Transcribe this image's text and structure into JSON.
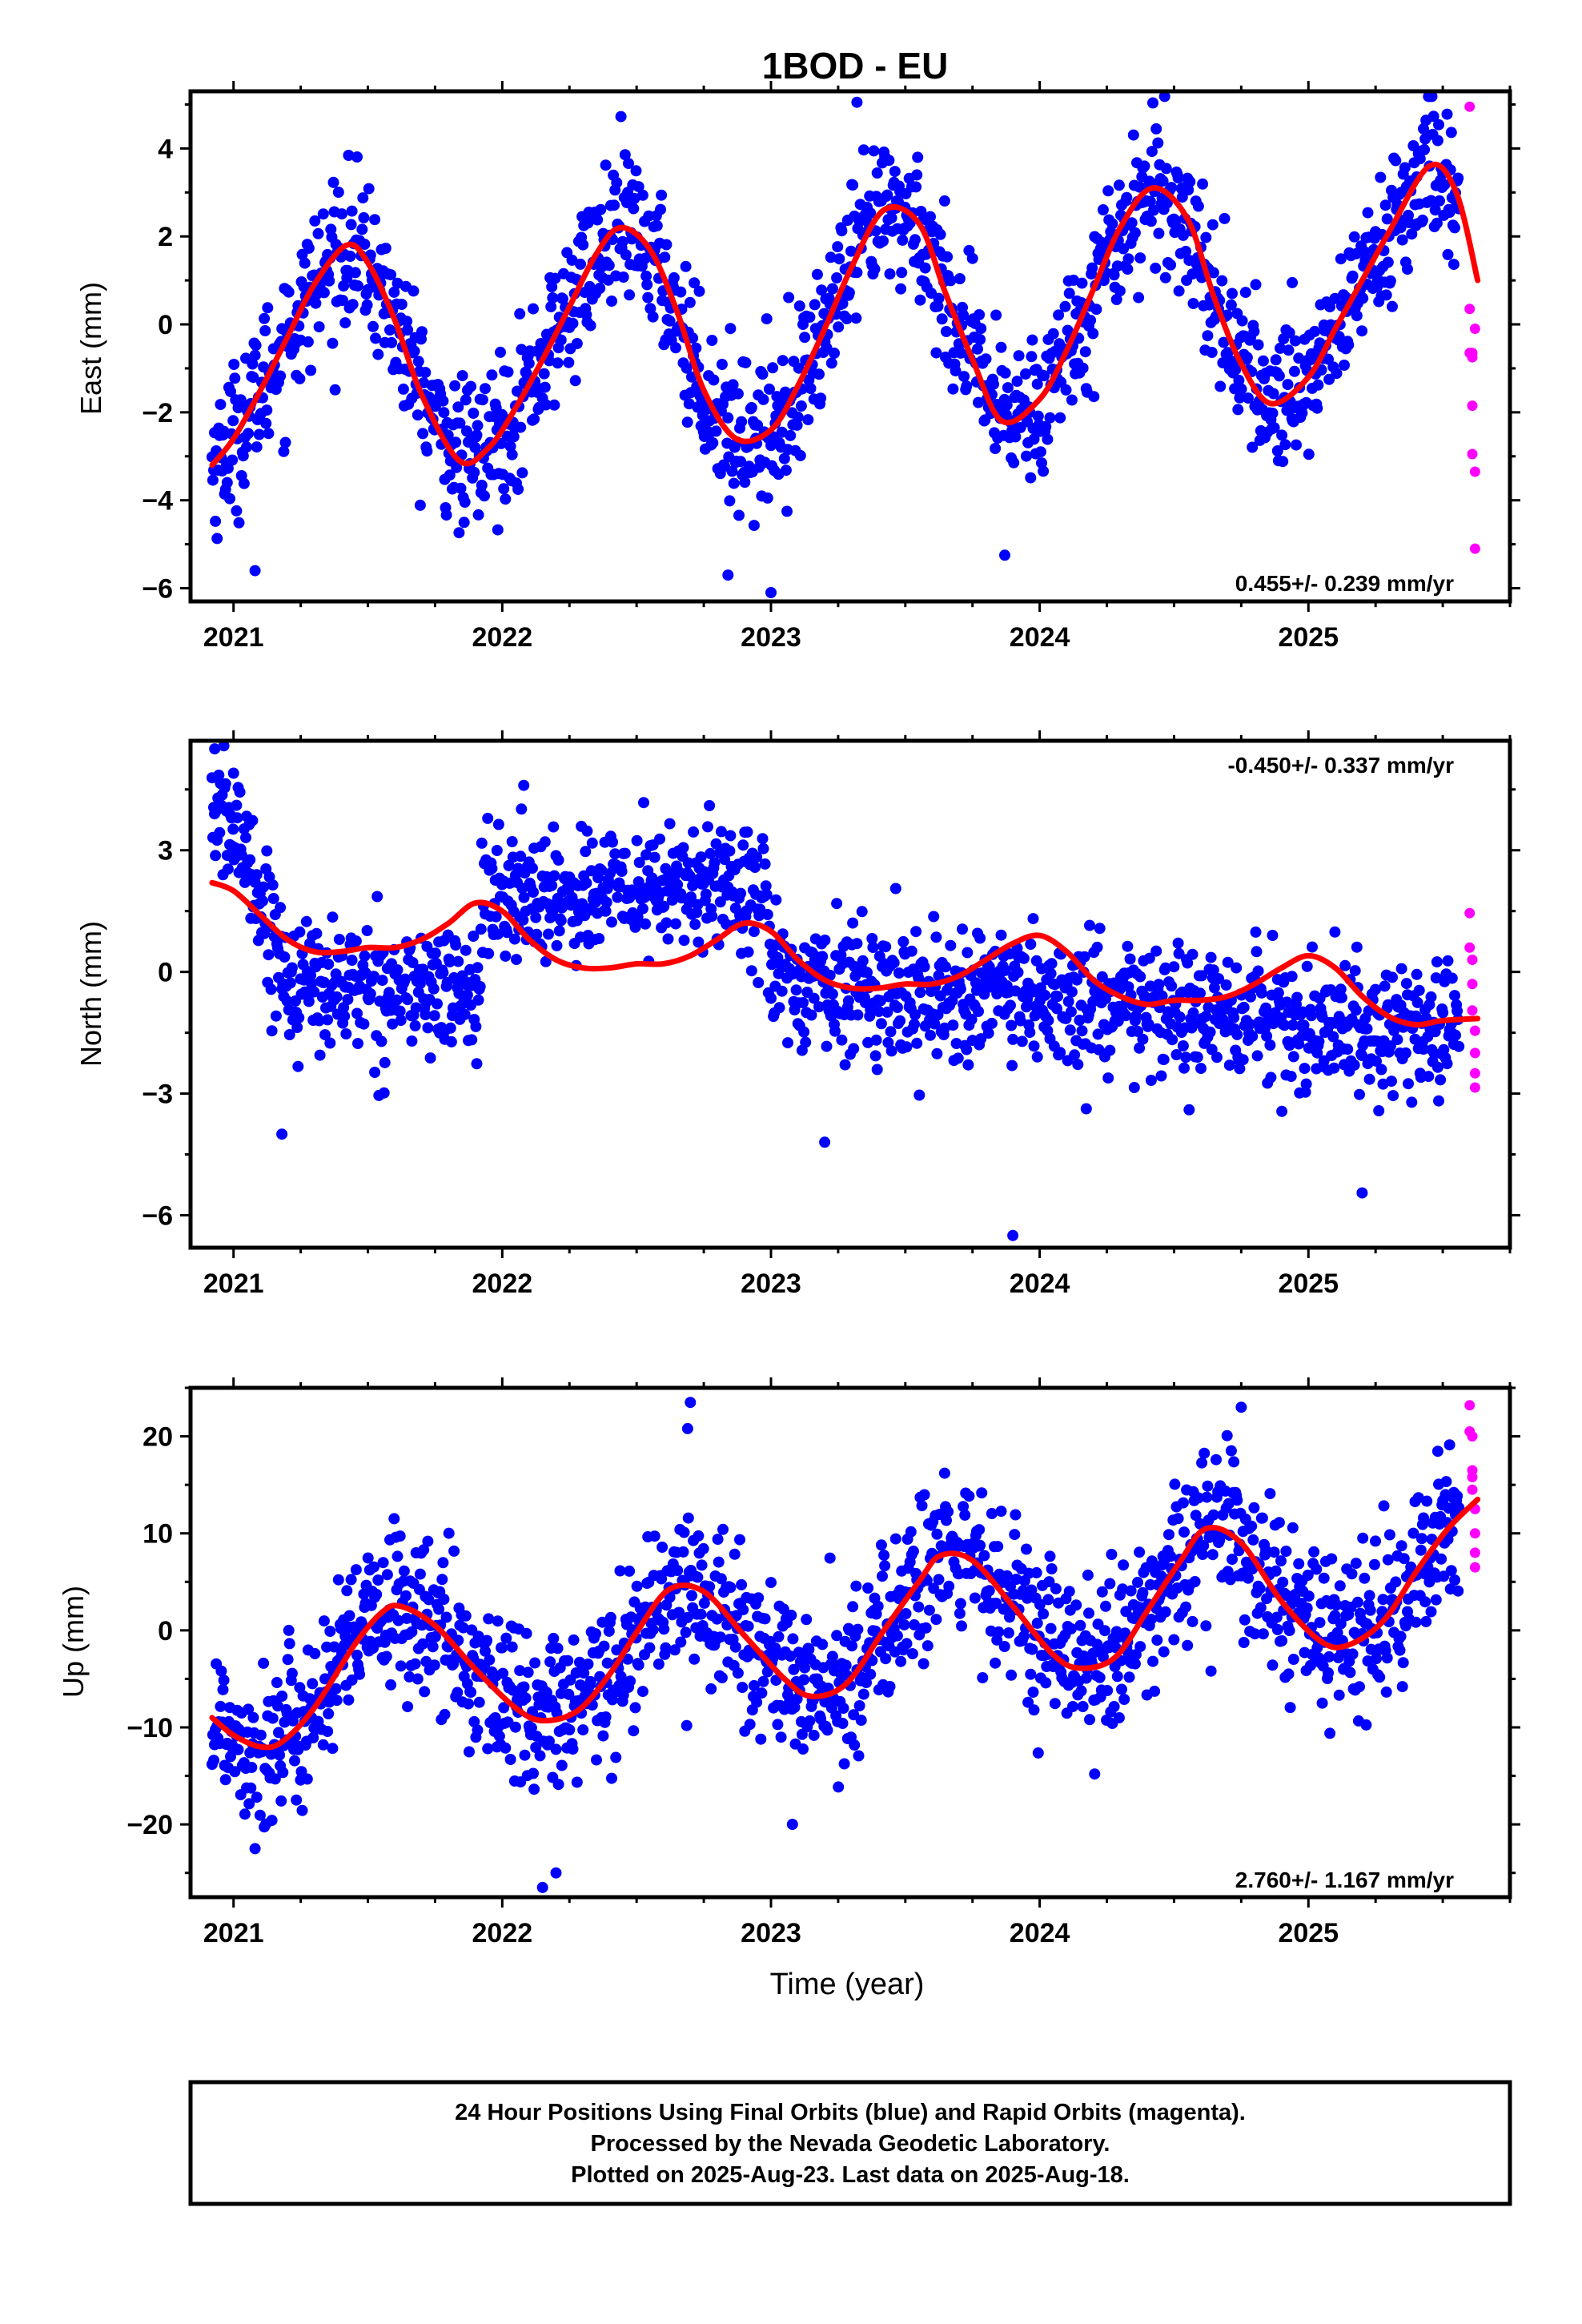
{
  "chart_data": [
    {
      "type": "scatter",
      "title": "1BOD - EU",
      "ylabel": "East (mm)",
      "rate_text": "0.455+/- 0.239 mm/yr",
      "rate_position": "bottom-right",
      "x_range": [
        2020.84,
        2025.75
      ],
      "ylim": [
        -6.3,
        5.3
      ],
      "y_ticks": [
        -6,
        -4,
        -2,
        0,
        2,
        4
      ],
      "y_tick_labels": [
        "−6",
        "−4",
        "−2",
        "0",
        "2",
        "4"
      ],
      "x_ticks": [
        2021,
        2022,
        2023,
        2024,
        2025
      ],
      "x_tick_labels": [
        "2021",
        "2022",
        "2023",
        "2024",
        "2025"
      ],
      "final_orbits": {
        "color": "#0000ff",
        "x_start": 2020.92,
        "x_end": 2025.56,
        "count": 1480,
        "noise_sd_mm": 0.85,
        "outliers": [
          [
            2023.0,
            -6.1
          ],
          [
            2021.08,
            -5.6
          ],
          [
            2023.87,
            -5.25
          ],
          [
            2022.84,
            -5.7
          ],
          [
            2023.32,
            5.05
          ],
          [
            2024.94,
            0.95
          ]
        ]
      },
      "rapid_orbits": {
        "color": "#ff00ff",
        "x": [
          2025.6,
          2025.6,
          2025.6,
          2025.61,
          2025.61,
          2025.61,
          2025.61,
          2025.62,
          2025.62,
          2025.62
        ],
        "y": [
          4.95,
          0.35,
          -0.65,
          -0.75,
          -0.65,
          -1.85,
          -2.95,
          -3.35,
          -5.1,
          -0.1
        ]
      },
      "fit": {
        "color": "#ff0000",
        "x": [
          2020.92,
          2021.0,
          2021.1,
          2021.2,
          2021.3,
          2021.42,
          2021.5,
          2021.6,
          2021.7,
          2021.84,
          2021.95,
          2022.05,
          2022.15,
          2022.25,
          2022.35,
          2022.44,
          2022.55,
          2022.65,
          2022.75,
          2022.87,
          2023.0,
          2023.1,
          2023.2,
          2023.3,
          2023.42,
          2023.55,
          2023.65,
          2023.75,
          2023.86,
          2024.0,
          2024.1,
          2024.2,
          2024.3,
          2024.42,
          2024.55,
          2024.65,
          2024.75,
          2024.86,
          2025.0,
          2025.1,
          2025.2,
          2025.3,
          2025.45,
          2025.55,
          2025.63
        ],
        "y": [
          -3.2,
          -2.6,
          -1.5,
          -0.3,
          0.9,
          1.8,
          1.4,
          0.1,
          -1.6,
          -3.1,
          -2.8,
          -1.9,
          -0.8,
          0.4,
          1.6,
          2.2,
          1.7,
          0.3,
          -1.5,
          -2.6,
          -2.4,
          -1.4,
          -0.1,
          1.3,
          2.6,
          2.3,
          0.7,
          -0.8,
          -2.2,
          -1.7,
          -0.6,
          0.8,
          2.2,
          3.1,
          2.4,
          0.6,
          -0.9,
          -1.8,
          -1.2,
          -0.1,
          1.0,
          2.1,
          3.6,
          3.0,
          1.0
        ]
      }
    },
    {
      "type": "scatter",
      "ylabel": "North (mm)",
      "rate_text": "-0.450+/- 0.337 mm/yr",
      "rate_position": "top-right",
      "x_range": [
        2020.84,
        2025.75
      ],
      "ylim": [
        -6.8,
        5.7
      ],
      "y_ticks": [
        -6,
        -3,
        0,
        3
      ],
      "y_tick_labels": [
        "−6",
        "−3",
        "0",
        "3"
      ],
      "x_ticks": [
        2021,
        2022,
        2023,
        2024,
        2025
      ],
      "x_tick_labels": [
        "2021",
        "2022",
        "2023",
        "2024",
        "2025"
      ],
      "final_orbits": {
        "color": "#0000ff",
        "x_start": 2020.92,
        "x_end": 2025.56,
        "count": 1480,
        "noise_sd_mm": 0.8,
        "outliers": [
          [
            2023.9,
            -6.5
          ],
          [
            2025.2,
            -5.45
          ],
          [
            2023.2,
            -4.2
          ],
          [
            2021.18,
            -4.0
          ],
          [
            2020.93,
            5.5
          ],
          [
            2021.0,
            4.9
          ],
          [
            2022.08,
            4.6
          ]
        ]
      },
      "rapid_orbits": {
        "color": "#ff00ff",
        "x": [
          2025.6,
          2025.6,
          2025.61,
          2025.61,
          2025.61,
          2025.62,
          2025.62,
          2025.62,
          2025.62
        ],
        "y": [
          1.45,
          0.6,
          0.3,
          -0.3,
          -0.95,
          -1.45,
          -2.0,
          -2.5,
          -2.85
        ]
      },
      "trend_segments": [
        {
          "x_start": 2020.92,
          "x_end": 2021.08,
          "y_start": 4.0,
          "y_end": 2.8
        },
        {
          "x_start": 2021.08,
          "x_end": 2021.2,
          "y_start": 2.0,
          "y_end": 0.0
        },
        {
          "x_start": 2021.2,
          "x_end": 2021.92,
          "y_start": -0.3,
          "y_end": -0.5
        },
        {
          "x_start": 2021.92,
          "x_end": 2022.99,
          "y_start": 1.8,
          "y_end": 2.2
        },
        {
          "x_start": 2022.99,
          "x_end": 2025.56,
          "y_start": -0.2,
          "y_end": -1.6
        }
      ],
      "fit": {
        "color": "#ff0000",
        "x": [
          2020.92,
          2021.0,
          2021.1,
          2021.2,
          2021.3,
          2021.4,
          2021.5,
          2021.6,
          2021.7,
          2021.8,
          2021.9,
          2022.0,
          2022.1,
          2022.2,
          2022.3,
          2022.4,
          2022.5,
          2022.6,
          2022.7,
          2022.8,
          2022.9,
          2023.0,
          2023.1,
          2023.2,
          2023.3,
          2023.4,
          2023.5,
          2023.6,
          2023.7,
          2023.8,
          2023.9,
          2024.0,
          2024.1,
          2024.2,
          2024.3,
          2024.4,
          2024.5,
          2024.6,
          2024.7,
          2024.8,
          2024.9,
          2025.0,
          2025.1,
          2025.2,
          2025.3,
          2025.4,
          2025.5,
          2025.63
        ],
        "y": [
          2.2,
          2.0,
          1.4,
          0.8,
          0.5,
          0.5,
          0.6,
          0.6,
          0.8,
          1.2,
          1.7,
          1.5,
          0.8,
          0.3,
          0.1,
          0.1,
          0.2,
          0.2,
          0.4,
          0.8,
          1.2,
          1.0,
          0.3,
          -0.2,
          -0.4,
          -0.4,
          -0.3,
          -0.3,
          -0.1,
          0.3,
          0.7,
          0.9,
          0.5,
          -0.2,
          -0.6,
          -0.8,
          -0.7,
          -0.7,
          -0.6,
          -0.3,
          0.1,
          0.4,
          0.1,
          -0.6,
          -1.1,
          -1.3,
          -1.2,
          -1.15
        ]
      }
    },
    {
      "type": "scatter",
      "ylabel": "Up (mm)",
      "xlabel": "Time (year)",
      "rate_text": "2.760+/- 1.167 mm/yr",
      "rate_position": "bottom-right",
      "x_range": [
        2020.84,
        2025.75
      ],
      "ylim": [
        -27.5,
        25
      ],
      "y_ticks": [
        -20,
        -10,
        0,
        10,
        20
      ],
      "y_tick_labels": [
        "−20",
        "−10",
        "0",
        "10",
        "20"
      ],
      "x_ticks": [
        2021,
        2022,
        2023,
        2024,
        2025
      ],
      "x_tick_labels": [
        "2021",
        "2022",
        "2023",
        "2024",
        "2025"
      ],
      "final_orbits": {
        "color": "#0000ff",
        "x_start": 2020.92,
        "x_end": 2025.56,
        "count": 1480,
        "noise_sd_mm": 4.2,
        "outliers": [
          [
            2022.15,
            -26.5
          ],
          [
            2022.7,
            23.5
          ],
          [
            2024.75,
            23.0
          ],
          [
            2022.2,
            -25.0
          ],
          [
            2023.08,
            -20.0
          ],
          [
            2021.08,
            -22.5
          ],
          [
            2022.69,
            20.8
          ]
        ]
      },
      "rapid_orbits": {
        "color": "#ff00ff",
        "x": [
          2025.6,
          2025.6,
          2025.61,
          2025.61,
          2025.61,
          2025.61,
          2025.62,
          2025.62,
          2025.62,
          2025.62
        ],
        "y": [
          23.2,
          20.5,
          20.0,
          16.5,
          15.8,
          14.5,
          12.5,
          10.0,
          8.0,
          6.5
        ]
      },
      "fit": {
        "color": "#ff0000",
        "x": [
          2020.92,
          2021.0,
          2021.1,
          2021.18,
          2021.3,
          2021.45,
          2021.55,
          2021.62,
          2021.75,
          2021.9,
          2022.05,
          2022.15,
          2022.28,
          2022.4,
          2022.5,
          2022.62,
          2022.75,
          2022.9,
          2023.05,
          2023.15,
          2023.28,
          2023.42,
          2023.55,
          2023.63,
          2023.75,
          2023.9,
          2024.05,
          2024.15,
          2024.28,
          2024.4,
          2024.52,
          2024.62,
          2024.75,
          2024.9,
          2025.05,
          2025.15,
          2025.28,
          2025.4,
          2025.52,
          2025.63
        ],
        "y": [
          -9.0,
          -10.8,
          -12.0,
          -11.5,
          -8.0,
          -1.5,
          1.8,
          2.5,
          0.5,
          -4.0,
          -8.0,
          -9.3,
          -8.3,
          -4.5,
          -0.2,
          4.2,
          4.0,
          -0.5,
          -5.0,
          -6.8,
          -5.5,
          0.0,
          5.0,
          7.7,
          7.2,
          2.5,
          -2.5,
          -3.9,
          -2.8,
          2.0,
          7.0,
          10.5,
          9.0,
          3.0,
          -1.2,
          -1.5,
          1.0,
          6.0,
          10.5,
          13.5
        ]
      }
    }
  ],
  "footer": {
    "line1": "24 Hour Positions Using Final Orbits (blue) and Rapid Orbits (magenta).",
    "line2": "Processed by the Nevada Geodetic Laboratory.",
    "line3": "Plotted on 2025-Aug-23. Last data on 2025-Aug-18."
  }
}
